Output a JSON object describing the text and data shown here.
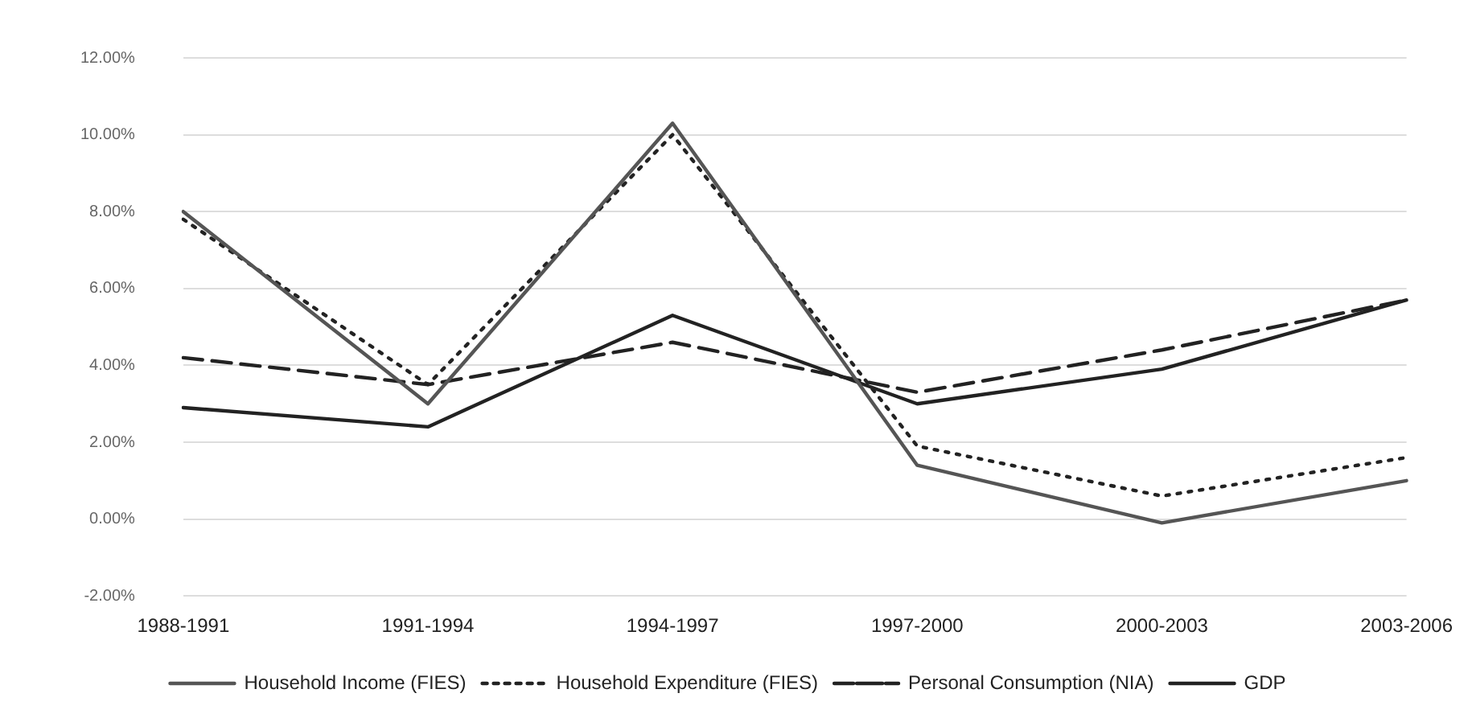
{
  "chart_data": {
    "type": "line",
    "categories": [
      "1988-1991",
      "1991-1994",
      "1994-1997",
      "1997-2000",
      "2000-2003",
      "2003-2006"
    ],
    "series": [
      {
        "name": "Household Income (FIES)",
        "color": "#555555",
        "line_style": "solid",
        "values": [
          8.0,
          3.0,
          10.3,
          1.4,
          -0.1,
          1.0
        ]
      },
      {
        "name": "Household Expenditure (FIES)",
        "color": "#222222",
        "line_style": "dotted",
        "values": [
          7.8,
          3.5,
          10.0,
          1.9,
          0.6,
          1.6
        ]
      },
      {
        "name": "Personal Consumption (NIA)",
        "color": "#222222",
        "line_style": "dashed",
        "values": [
          4.2,
          3.5,
          4.6,
          3.3,
          4.4,
          5.7
        ]
      },
      {
        "name": "GDP",
        "color": "#222222",
        "line_style": "solid",
        "values": [
          2.9,
          2.4,
          5.3,
          3.0,
          3.9,
          5.7
        ]
      }
    ],
    "ylim": [
      -2,
      12
    ],
    "yticks": [
      {
        "value": -2,
        "label": "-2.00%"
      },
      {
        "value": 0,
        "label": "0.00%"
      },
      {
        "value": 2,
        "label": "2.00%"
      },
      {
        "value": 4,
        "label": "4.00%"
      },
      {
        "value": 6,
        "label": "6.00%"
      },
      {
        "value": 8,
        "label": "8.00%"
      },
      {
        "value": 10,
        "label": "10.00%"
      },
      {
        "value": 12,
        "label": "12.00%"
      }
    ],
    "grid": "y",
    "legend": "bottom",
    "marker": "none"
  }
}
